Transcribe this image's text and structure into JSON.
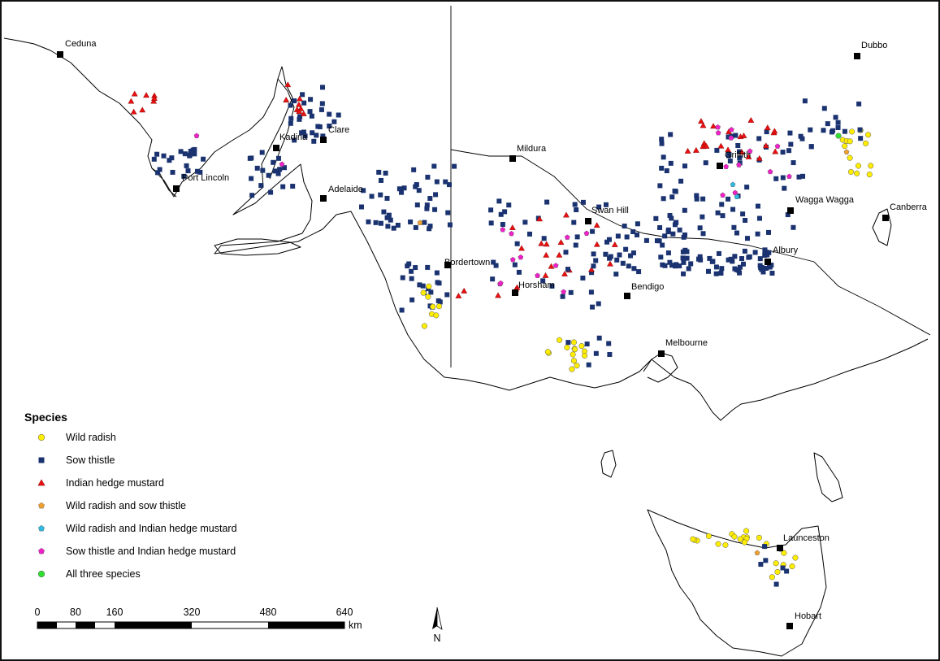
{
  "legend": {
    "title": "Species",
    "items": [
      {
        "label": "Wild radish",
        "shape": "circle",
        "color": "#ffee00"
      },
      {
        "label": "Sow thistle",
        "shape": "square",
        "color": "#1a3370"
      },
      {
        "label": "Indian hedge mustard",
        "shape": "triangle",
        "color": "#e81010"
      },
      {
        "label": "Wild radish and sow thistle",
        "shape": "pentagon",
        "color": "#f0a030"
      },
      {
        "label": "Wild radish and Indian hedge mustard",
        "shape": "pentagon",
        "color": "#30b8e0"
      },
      {
        "label": "Sow thistle and Indian hedge mustard",
        "shape": "pentagon",
        "color": "#f020c8"
      },
      {
        "label": "All three species",
        "shape": "circle",
        "color": "#30e030"
      }
    ]
  },
  "towns": [
    "Ceduna",
    "Dubbo",
    "Clare",
    "Kadina",
    "Port Lincoln",
    "Adelaide",
    "Mildura",
    "Griffith",
    "Swan Hill",
    "Wagga Wagga",
    "Canberra",
    "Bordertown",
    "Horsham",
    "Albury",
    "Bendigo",
    "Melbourne",
    "Launceston",
    "Hobart"
  ],
  "scale_bar": {
    "ticks": [
      "0",
      "80",
      "160",
      "320",
      "480",
      "640"
    ],
    "unit": "km"
  },
  "north_arrow": {
    "label": "N"
  }
}
